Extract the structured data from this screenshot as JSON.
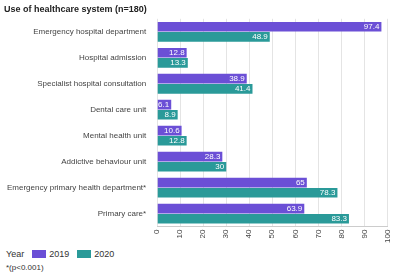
{
  "chart_data": {
    "type": "bar",
    "orientation": "horizontal",
    "title": "Use of healthcare system (n=180)",
    "categories": [
      "Emergency hospital department",
      "Hospital admission",
      "Specialist hospital consultation",
      "Dental care unit",
      "Mental health unit",
      "Addictive behaviour unit",
      "Emergency primary health department*",
      "Primary care*"
    ],
    "series": [
      {
        "name": "2019",
        "color": "#6b4fd6",
        "values": [
          97.4,
          12.8,
          38.9,
          6.1,
          10.6,
          28.3,
          65,
          63.9
        ]
      },
      {
        "name": "2020",
        "color": "#2a9a99",
        "values": [
          48.9,
          13.3,
          41.4,
          8.9,
          12.8,
          30,
          78.3,
          83.3
        ]
      }
    ],
    "xlim": [
      0,
      100
    ],
    "xticks": [
      0,
      10,
      20,
      30,
      40,
      50,
      60,
      70,
      80,
      90,
      100
    ],
    "grid": true,
    "data_labels": true,
    "legend": "bottom",
    "legend_title": "Year",
    "annotations": [
      "*(p<0.001)"
    ]
  }
}
